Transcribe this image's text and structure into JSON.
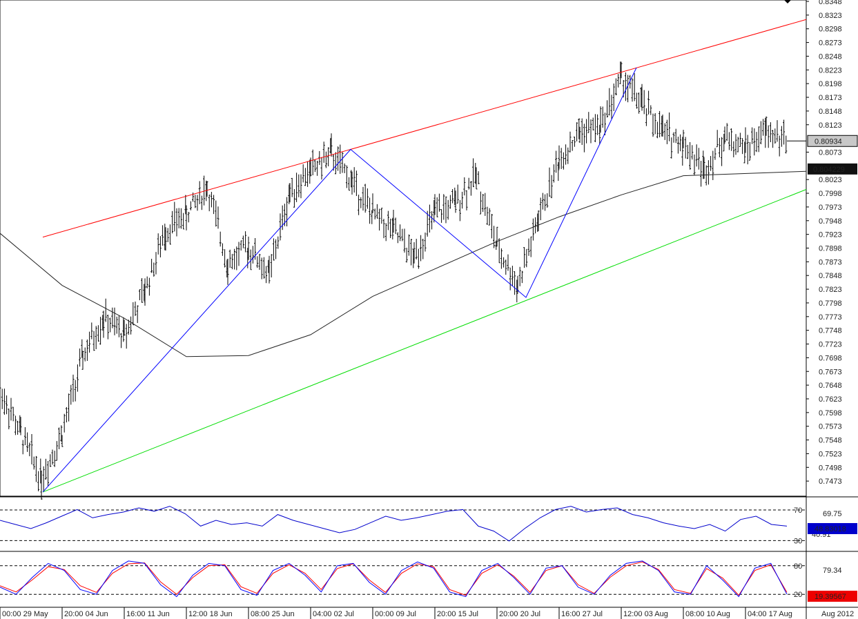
{
  "chart_data": [
    {
      "type": "line",
      "panel": "price",
      "chart_style": "ohlc-bars",
      "y_axis_side": "right",
      "ylim": [
        0.7448,
        0.8348
      ],
      "price_ticks": [
        "0.8348",
        "0.8323",
        "0.8298",
        "0.8273",
        "0.8248",
        "0.8223",
        "0.8198",
        "0.8173",
        "0.8148",
        "0.8123",
        "0.8073",
        "0.8023",
        "0.7998",
        "0.7973",
        "0.7948",
        "0.7923",
        "0.7898",
        "0.7873",
        "0.7848",
        "0.7823",
        "0.7798",
        "0.7773",
        "0.7748",
        "0.7723",
        "0.7698",
        "0.7673",
        "0.7648",
        "0.7623",
        "0.7598",
        "0.7573",
        "0.7548",
        "0.7523",
        "0.7498",
        "0.7473"
      ],
      "x_ticks": [
        "00:00 29 May",
        "20:00 04 Jun",
        "16:00 11 Jun",
        "12:00 18 Jun",
        "08:00 25 Jun",
        "04:00 02 Jul",
        "00:00 09 Jul",
        "20:00 15 Jul",
        "20:00 20 Jul",
        "16:00 27 Jul",
        "12:00 03 Aug",
        "08:00 10 Aug",
        "04:00 17 Aug"
      ],
      "x_axis_edge_label": "Aug 2012",
      "price_path": [
        [
          "00:00 29 May",
          0.764
        ],
        [
          "00:00 29 May",
          0.756
        ],
        [
          "00:00 29 May",
          0.7478
        ],
        [
          "20:00 04 Jun",
          0.756
        ],
        [
          "20:00 04 Jun",
          0.77
        ],
        [
          "20:00 04 Jun",
          0.777
        ],
        [
          "16:00 11 Jun",
          0.774
        ],
        [
          "16:00 11 Jun",
          0.782
        ],
        [
          "16:00 11 Jun",
          0.793
        ],
        [
          "12:00 18 Jun",
          0.796
        ],
        [
          "12:00 18 Jun",
          0.801
        ],
        [
          "12:00 18 Jun",
          0.787
        ],
        [
          "08:00 25 Jun",
          0.79
        ],
        [
          "08:00 25 Jun",
          0.785
        ],
        [
          "08:00 25 Jun",
          0.8
        ],
        [
          "04:00 02 Jul",
          0.804
        ],
        [
          "04:00 02 Jul",
          0.807
        ],
        [
          "04:00 02 Jul",
          0.802
        ],
        [
          "00:00 09 Jul",
          0.796
        ],
        [
          "00:00 09 Jul",
          0.793
        ],
        [
          "00:00 09 Jul",
          0.788
        ],
        [
          "20:00 15 Jul",
          0.796
        ],
        [
          "20:00 15 Jul",
          0.798
        ],
        [
          "20:00 15 Jul",
          0.803
        ],
        [
          "20:00 20 Jul",
          0.79
        ],
        [
          "20:00 20 Jul",
          0.783
        ],
        [
          "20:00 20 Jul",
          0.795
        ],
        [
          "16:00 27 Jul",
          0.806
        ],
        [
          "16:00 27 Jul",
          0.811
        ],
        [
          "16:00 27 Jul",
          0.812
        ],
        [
          "12:00 03 Aug",
          0.821
        ],
        [
          "12:00 03 Aug",
          0.816
        ],
        [
          "12:00 03 Aug",
          0.811
        ],
        [
          "08:00 10 Aug",
          0.809
        ],
        [
          "08:00 10 Aug",
          0.804
        ],
        [
          "08:00 10 Aug",
          0.81
        ],
        [
          "04:00 17 Aug",
          0.808
        ],
        [
          "04:00 17 Aug",
          0.811
        ],
        [
          "04:00 17 Aug",
          0.8093
        ]
      ],
      "moving_average": [
        [
          "00:00 29 May",
          0.7925
        ],
        [
          "20:00 04 Jun",
          0.783
        ],
        [
          "16:00 11 Jun",
          0.777
        ],
        [
          "12:00 18 Jun",
          0.77
        ],
        [
          "08:00 25 Jun",
          0.7702
        ],
        [
          "04:00 02 Jul",
          0.774
        ],
        [
          "00:00 09 Jul",
          0.781
        ],
        [
          "20:00 15 Jul",
          0.786
        ],
        [
          "20:00 20 Jul",
          0.791
        ],
        [
          "16:00 27 Jul",
          0.7955
        ],
        [
          "12:00 03 Aug",
          0.7995
        ],
        [
          "08:00 10 Aug",
          0.803
        ],
        [
          "04:00 17 Aug",
          0.8038
        ]
      ],
      "channel_upper": [
        [
          "20:00 29 May",
          0.7918
        ],
        [
          "04:00 17 Aug",
          0.8315
        ]
      ],
      "channel_lower": [
        [
          "00:00 29 May",
          0.7453
        ],
        [
          "04:00 17 Aug",
          0.8005
        ]
      ],
      "zigzag": [
        [
          "00:00 29 May",
          0.7453
        ],
        [
          "04:00 02 Jul",
          0.8078
        ],
        [
          "20:00 20 Jul",
          0.7808
        ],
        [
          "12:00 03 Aug",
          0.8227
        ]
      ],
      "last_price_label": "0.80934",
      "ma_label": "0.804229",
      "colors": {
        "bars": "#000000",
        "ma": "#222222",
        "upper": "#ff0000",
        "lower": "#00dd00",
        "zigzag": "#0000ff",
        "price_box": "#c8c8c8",
        "ma_box": "#111111"
      }
    },
    {
      "type": "line",
      "panel": "rsi",
      "ylim": [
        20,
        80
      ],
      "levels": [
        "70",
        "30"
      ],
      "extra_label": "69.75",
      "partial_label": "40.91",
      "current_label": "48.83018",
      "values": [
        55,
        50,
        45,
        52,
        60,
        68,
        58,
        62,
        65,
        70,
        66,
        72,
        63,
        48,
        55,
        50,
        52,
        48,
        62,
        55,
        50,
        45,
        40,
        44,
        52,
        60,
        55,
        58,
        62,
        66,
        68,
        48,
        42,
        30,
        45,
        58,
        68,
        72,
        65,
        68,
        70,
        62,
        58,
        52,
        48,
        45,
        50,
        42,
        56,
        60,
        50,
        48
      ],
      "colors": {
        "line": "#0000cc",
        "box": "#0000cc"
      }
    },
    {
      "type": "line",
      "panel": "stochastic",
      "ylim": [
        0,
        100
      ],
      "levels": [
        "80",
        "20"
      ],
      "extra_label": "79.34",
      "current_label": "19.39567",
      "values_k": [
        35,
        20,
        55,
        85,
        70,
        30,
        20,
        70,
        90,
        85,
        40,
        15,
        60,
        85,
        80,
        30,
        18,
        70,
        85,
        60,
        25,
        80,
        85,
        45,
        20,
        70,
        88,
        75,
        25,
        15,
        70,
        85,
        55,
        20,
        75,
        80,
        35,
        20,
        60,
        85,
        90,
        70,
        25,
        20,
        80,
        50,
        15,
        75,
        85,
        20
      ],
      "values_d": [
        38,
        25,
        50,
        78,
        72,
        38,
        24,
        64,
        84,
        86,
        46,
        20,
        55,
        80,
        82,
        36,
        22,
        64,
        82,
        64,
        30,
        74,
        84,
        50,
        24,
        64,
        84,
        78,
        30,
        18,
        64,
        82,
        58,
        24,
        70,
        80,
        40,
        22,
        56,
        80,
        88,
        72,
        30,
        22,
        74,
        54,
        18,
        70,
        82,
        24
      ],
      "colors": {
        "k": "#0000ff",
        "d": "#ff0000",
        "box": "#ee0000"
      }
    }
  ]
}
